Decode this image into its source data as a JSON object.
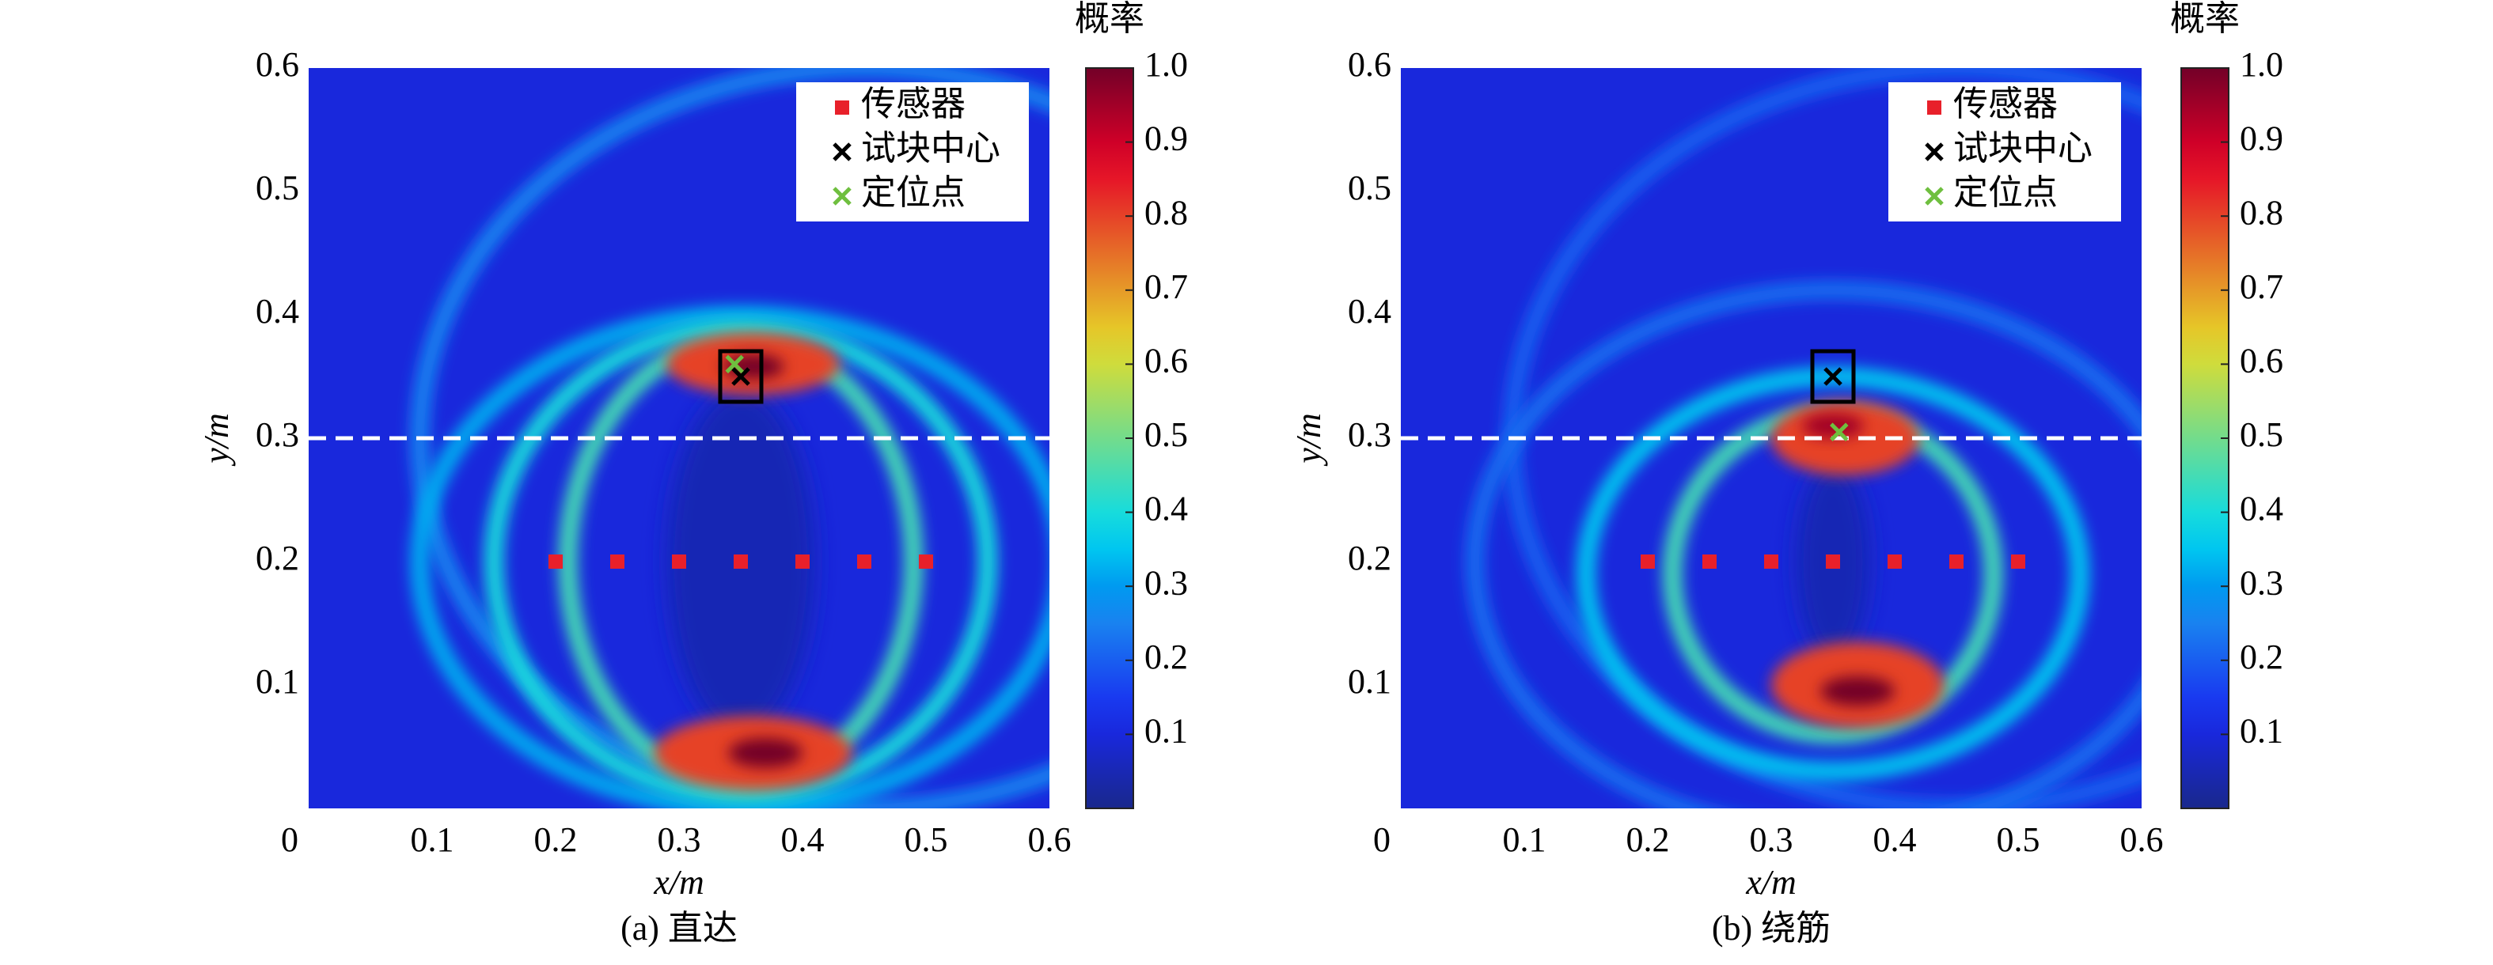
{
  "chart_data": [
    {
      "type": "heatmap",
      "caption": "(a) 直达",
      "xlabel": "x/m",
      "ylabel": "y/m",
      "xlim": [
        0,
        0.6
      ],
      "ylim": [
        0,
        0.6
      ],
      "xticks": [
        0,
        0.1,
        0.2,
        0.3,
        0.4,
        0.5,
        0.6
      ],
      "yticks": [
        0.1,
        0.2,
        0.3,
        0.4,
        0.5,
        0.6
      ],
      "colormap": "jet",
      "colorbar": {
        "title": "概率",
        "clim": [
          0,
          1
        ],
        "ticks": [
          0.1,
          0.2,
          0.3,
          0.4,
          0.5,
          0.6,
          0.7,
          0.8,
          0.9,
          {
            "value": 1,
            "label": "1.0"
          }
        ]
      },
      "background": 0.1,
      "rings": [
        {
          "cx": 0.45,
          "cy": 0.3,
          "rx": 0.36,
          "ry": 0.3,
          "value": 0.25
        },
        {
          "cx": 0.35,
          "cy": 0.2,
          "rx": 0.26,
          "ry": 0.2,
          "value": 0.32
        },
        {
          "cx": 0.35,
          "cy": 0.2,
          "rx": 0.2,
          "ry": 0.19,
          "value": 0.4
        },
        {
          "cx": 0.35,
          "cy": 0.2,
          "rx": 0.14,
          "ry": 0.18,
          "value": 0.45
        }
      ],
      "holes": [
        {
          "cx": 0.35,
          "cy": 0.2,
          "rx": 0.06,
          "ry": 0.14,
          "value": 0.05
        }
      ],
      "peaks": [
        {
          "cx": 0.36,
          "cy": 0.36,
          "rx": 0.07,
          "ry": 0.025,
          "value": 0.8
        },
        {
          "cx": 0.36,
          "cy": 0.358,
          "rx": 0.025,
          "ry": 0.01,
          "value": 1.0
        },
        {
          "cx": 0.36,
          "cy": 0.045,
          "rx": 0.08,
          "ry": 0.03,
          "value": 0.8
        },
        {
          "cx": 0.37,
          "cy": 0.045,
          "rx": 0.03,
          "ry": 0.012,
          "value": 1.0
        }
      ],
      "hline": 0.3,
      "legend": "upper right",
      "series": [
        {
          "name": "传感器",
          "color": "#e8202a",
          "marker": "square",
          "x": [
            0.2,
            0.25,
            0.3,
            0.35,
            0.4,
            0.45,
            0.5
          ],
          "y": [
            0.2,
            0.2,
            0.2,
            0.2,
            0.2,
            0.2,
            0.2
          ]
        },
        {
          "name": "试块中心",
          "color": "#000000",
          "marker": "x",
          "x": [
            0.35
          ],
          "y": [
            0.35
          ],
          "box": true
        },
        {
          "name": "定位点",
          "color": "#6fbf3f",
          "marker": "x",
          "x": [
            0.345
          ],
          "y": [
            0.36
          ]
        }
      ]
    },
    {
      "type": "heatmap",
      "caption": "(b) 绕筋",
      "xlabel": "x/m",
      "ylabel": "y/m",
      "xlim": [
        0,
        0.6
      ],
      "ylim": [
        0,
        0.6
      ],
      "xticks": [
        0,
        0.1,
        0.2,
        0.3,
        0.4,
        0.5,
        0.6
      ],
      "yticks": [
        0.1,
        0.2,
        0.3,
        0.4,
        0.5,
        0.6
      ],
      "colormap": "jet",
      "colorbar": {
        "title": "概率",
        "clim": [
          0,
          1
        ],
        "ticks": [
          0.1,
          0.2,
          0.3,
          0.4,
          0.5,
          0.6,
          0.7,
          0.8,
          0.9,
          {
            "value": 1,
            "label": "1.0"
          }
        ]
      },
      "background": 0.1,
      "rings": [
        {
          "cx": 0.45,
          "cy": 0.3,
          "rx": 0.36,
          "ry": 0.3,
          "value": 0.2
        },
        {
          "cx": 0.35,
          "cy": 0.2,
          "rx": 0.29,
          "ry": 0.22,
          "value": 0.22
        },
        {
          "cx": 0.35,
          "cy": 0.19,
          "rx": 0.2,
          "ry": 0.16,
          "value": 0.35
        },
        {
          "cx": 0.35,
          "cy": 0.19,
          "rx": 0.13,
          "ry": 0.13,
          "value": 0.45
        }
      ],
      "holes": [
        {
          "cx": 0.35,
          "cy": 0.2,
          "rx": 0.03,
          "ry": 0.08,
          "value": 0.05
        }
      ],
      "peaks": [
        {
          "cx": 0.36,
          "cy": 0.3,
          "rx": 0.06,
          "ry": 0.03,
          "value": 0.8
        },
        {
          "cx": 0.35,
          "cy": 0.31,
          "rx": 0.025,
          "ry": 0.01,
          "value": 0.95
        },
        {
          "cx": 0.37,
          "cy": 0.1,
          "rx": 0.07,
          "ry": 0.035,
          "value": 0.8
        },
        {
          "cx": 0.37,
          "cy": 0.095,
          "rx": 0.03,
          "ry": 0.012,
          "value": 1.0
        }
      ],
      "hline": 0.3,
      "legend": "upper right",
      "series": [
        {
          "name": "传感器",
          "color": "#e8202a",
          "marker": "square",
          "x": [
            0.2,
            0.25,
            0.3,
            0.35,
            0.4,
            0.45,
            0.5
          ],
          "y": [
            0.2,
            0.2,
            0.2,
            0.2,
            0.2,
            0.2,
            0.2
          ]
        },
        {
          "name": "试块中心",
          "color": "#000000",
          "marker": "x",
          "x": [
            0.35
          ],
          "y": [
            0.35
          ],
          "box": true
        },
        {
          "name": "定位点",
          "color": "#6fbf3f",
          "marker": "x",
          "x": [
            0.355
          ],
          "y": [
            0.305
          ]
        }
      ]
    }
  ]
}
